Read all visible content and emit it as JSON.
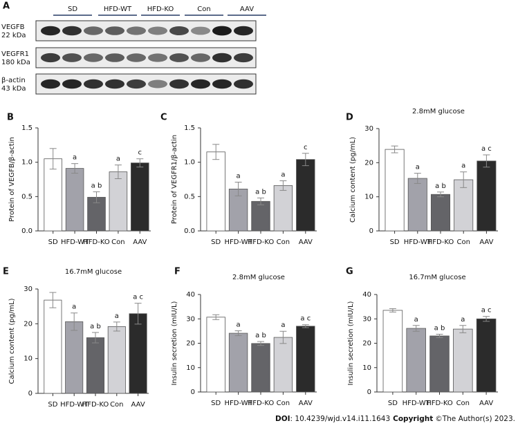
{
  "blot": {
    "panel": "A",
    "groups": [
      "SD",
      "HFD-WT",
      "HFD-KO",
      "Con",
      "AAV"
    ],
    "rows": [
      {
        "name": "VEGFB",
        "size": "22 kDa"
      },
      {
        "name": "VEGFR1",
        "size": "180 kDa"
      },
      {
        "name": "β-actin",
        "size": "43 kDa"
      }
    ]
  },
  "chart_data": [
    {
      "type": "bar",
      "panel": "B",
      "ylabel": "Protein of VEGFB/β-actin",
      "categories": [
        "SD",
        "HFD-WT",
        "HFD-KO",
        "Con",
        "AAV"
      ],
      "values": [
        1.05,
        0.91,
        0.49,
        0.86,
        0.99
      ],
      "errors": [
        0.15,
        0.07,
        0.08,
        0.1,
        0.06
      ],
      "annotations": [
        null,
        "a",
        "a b",
        "a",
        "c"
      ],
      "colors": [
        "#ffffff",
        "#a2a2aa",
        "#646468",
        "#d2d2d6",
        "#2b2b2b"
      ],
      "ylim": [
        0,
        1.5
      ],
      "yticks": [
        {
          "value": 0,
          "label": "0.0"
        },
        {
          "value": 0.5,
          "label": "0.5"
        },
        {
          "value": 1,
          "label": "1.0"
        },
        {
          "value": 1.5,
          "label": "1.5"
        }
      ]
    },
    {
      "type": "bar",
      "panel": "C",
      "ylabel": "Protein of VEGFR1/β-actin",
      "categories": [
        "SD",
        "HFD-WT",
        "HFD-KO",
        "Con",
        "AAV"
      ],
      "values": [
        1.15,
        0.61,
        0.43,
        0.66,
        1.04
      ],
      "errors": [
        0.11,
        0.1,
        0.05,
        0.07,
        0.09
      ],
      "annotations": [
        null,
        "a",
        "a b",
        "a",
        "c"
      ],
      "colors": [
        "#ffffff",
        "#a2a2aa",
        "#646468",
        "#d2d2d6",
        "#2b2b2b"
      ],
      "ylim": [
        0,
        1.5
      ],
      "yticks": [
        {
          "value": 0,
          "label": "0.0"
        },
        {
          "value": 0.5,
          "label": "0.5"
        },
        {
          "value": 1,
          "label": "1.0"
        },
        {
          "value": 1.5,
          "label": "1.5"
        }
      ]
    },
    {
      "type": "bar",
      "panel": "D",
      "title": "2.8mM glucose",
      "ylabel": "Calcium content (pg/mL)",
      "categories": [
        "SD",
        "HFD-WT",
        "HFD-KO",
        "Con",
        "AAV"
      ],
      "values": [
        23.9,
        15.4,
        10.7,
        15.0,
        20.5
      ],
      "errors": [
        1,
        1.5,
        0.7,
        2.3,
        1.8
      ],
      "annotations": [
        null,
        "a",
        "a b",
        "a",
        "a c"
      ],
      "colors": [
        "#ffffff",
        "#a2a2aa",
        "#646468",
        "#d2d2d6",
        "#2b2b2b"
      ],
      "ylim": [
        0,
        30
      ],
      "yticks": [
        0,
        10,
        20,
        30
      ]
    },
    {
      "type": "bar",
      "panel": "E",
      "title": "16.7mM glucose",
      "ylabel": "Calcium content (pg/mL)",
      "categories": [
        "SD",
        "HFD-WT",
        "HFD-KO",
        "Con",
        "AAV"
      ],
      "values": [
        26.8,
        20.6,
        16.0,
        19.2,
        22.9
      ],
      "errors": [
        2.2,
        2.5,
        1.5,
        1.3,
        3
      ],
      "annotations": [
        null,
        "a",
        "a b",
        "a",
        "a c"
      ],
      "colors": [
        "#ffffff",
        "#a2a2aa",
        "#646468",
        "#d2d2d6",
        "#2b2b2b"
      ],
      "ylim": [
        0,
        30
      ],
      "yticks": [
        0,
        10,
        20,
        30
      ]
    },
    {
      "type": "bar",
      "panel": "F",
      "title": "2.8mM glucose",
      "ylabel": "Insulin secretion (mIU/L)",
      "categories": [
        "SD",
        "HFD-WT",
        "HFD-KO",
        "Con",
        "AAV"
      ],
      "values": [
        30.7,
        24.1,
        19.9,
        22.4,
        27.0
      ],
      "errors": [
        1,
        1,
        0.8,
        2.5,
        0.6
      ],
      "annotations": [
        null,
        "a",
        "a b",
        "a",
        "a c"
      ],
      "colors": [
        "#ffffff",
        "#a2a2aa",
        "#646468",
        "#d2d2d6",
        "#2b2b2b"
      ],
      "ylim": [
        0,
        40
      ],
      "yticks": [
        0,
        10,
        20,
        30,
        40
      ]
    },
    {
      "type": "bar",
      "panel": "G",
      "title": "16.7mM glucose",
      "ylabel": "Insulin secretion (mIU/L)",
      "categories": [
        "SD",
        "HFD-WT",
        "HFD-KO",
        "Con",
        "AAV"
      ],
      "values": [
        33.5,
        26.1,
        23.0,
        25.8,
        30.0
      ],
      "errors": [
        0.7,
        1.2,
        0.7,
        1.5,
        1
      ],
      "annotations": [
        null,
        "a",
        "a b",
        "a",
        "a c"
      ],
      "colors": [
        "#ffffff",
        "#a2a2aa",
        "#646468",
        "#d2d2d6",
        "#2b2b2b"
      ],
      "ylim": [
        0,
        40
      ],
      "yticks": [
        0,
        10,
        20,
        30,
        40
      ]
    }
  ],
  "footer": {
    "doi_label": "DOI",
    "doi": ": 10.4239/wjd.v14.i11.1643",
    "copyright_label": "Copyright",
    "copyright": "©The Author(s) 2023."
  }
}
